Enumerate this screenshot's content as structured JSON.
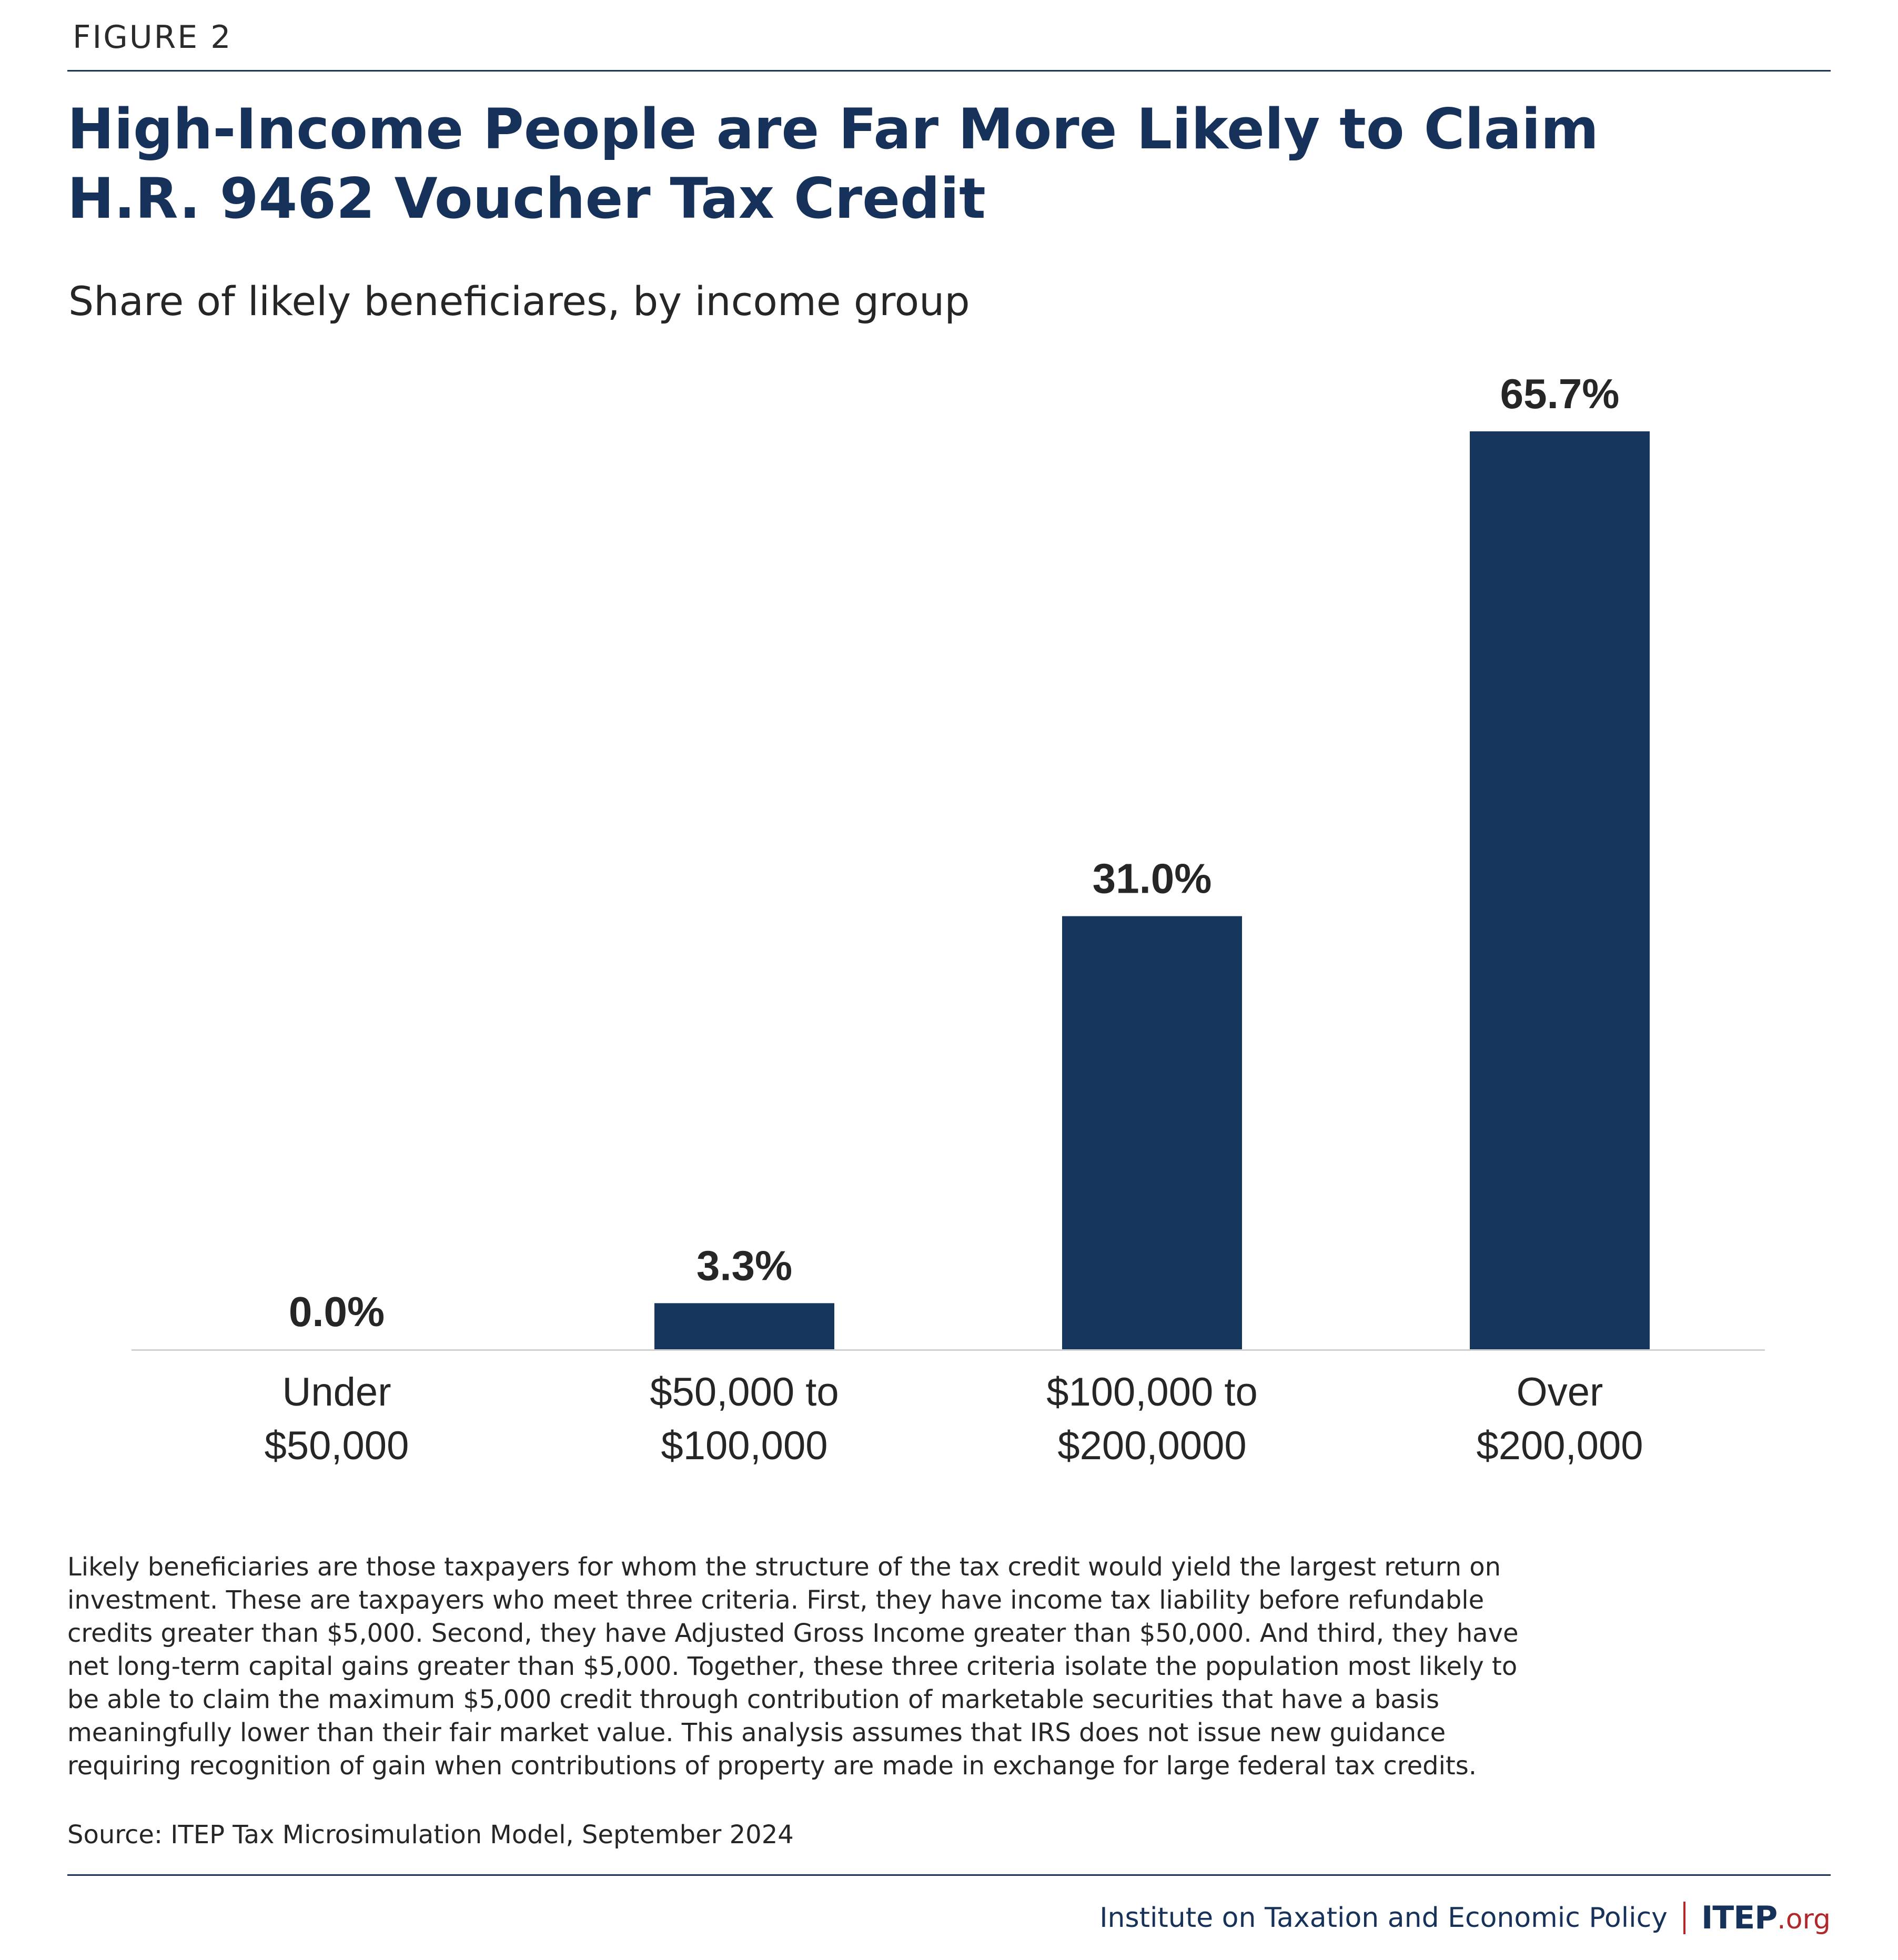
{
  "figure_label": "FIGURE 2",
  "title_lines": [
    "High-Income People are Far More Likely to Claim",
    "H.R. 9462 Voucher Tax Credit"
  ],
  "subtitle": "Share of likely beneficiares, by income group",
  "chart_data": {
    "type": "bar",
    "title": "High-Income People are Far More Likely to Claim H.R. 9462 Voucher Tax Credit",
    "subtitle": "Share of likely beneficiares, by income group",
    "categories": [
      [
        "Under",
        "$50,000"
      ],
      [
        "$50,000 to",
        "$100,000"
      ],
      [
        "$100,000 to",
        "$200,0000"
      ],
      [
        "Over",
        "$200,000"
      ]
    ],
    "values": [
      0.0,
      3.3,
      31.0,
      65.7
    ],
    "value_labels": [
      "0.0%",
      "3.3%",
      "31.0%",
      "65.7%"
    ],
    "xlabel": "",
    "ylabel": "",
    "ylim": [
      0,
      65.7
    ],
    "grid": false,
    "bar_color": "#17365d",
    "baseline_color": "#d0d0d0"
  },
  "notes": [
    "Likely beneficiaries are those taxpayers for whom the structure of the tax credit would yield the largest return on",
    "investment. These are taxpayers who meet three criteria. First, they have income tax liability before refundable",
    "credits greater than $5,000. Second, they have Adjusted Gross Income greater than $50,000. And third, they have",
    "net long-term capital gains greater than $5,000. Together, these three criteria isolate the population most likely to",
    "be able to claim the maximum $5,000 credit through contribution of marketable securities that have a basis",
    "meaningfully lower than their fair market value. This analysis assumes that IRS does not issue new guidance",
    "requiring recognition of gain when contributions of property are made in exchange for large federal tax credits."
  ],
  "source": "Source: ITEP Tax Microsimulation Model, September 2024",
  "footer": {
    "org_name": "Institute on Taxation and Economic Policy",
    "logo_main": "ITEP",
    "logo_suffix": ".org"
  }
}
